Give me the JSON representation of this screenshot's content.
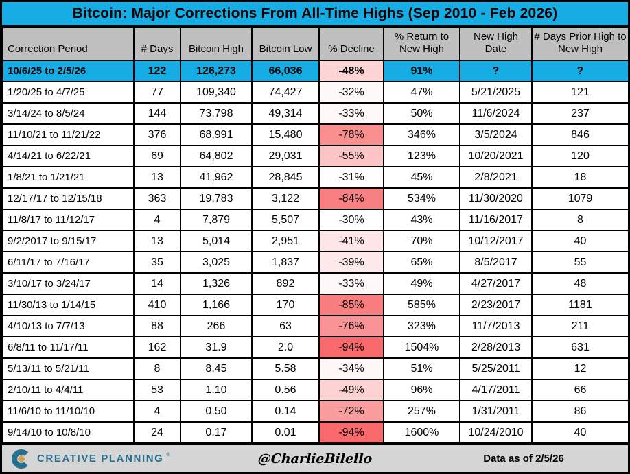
{
  "colors": {
    "accent_cyan": "#16ADE4",
    "header_gray": "#BFBFBF",
    "footer_gray": "#D6D6D6",
    "grid_black": "#000000",
    "decline_scale_min_color": "#FFFFFF",
    "decline_scale_max_color": "#F8696B",
    "logo_teal": "#26708F",
    "logo_gold": "#C8A356"
  },
  "chart_data": {
    "type": "table",
    "title": "Bitcoin: Major Corrections From All-Time Highs (Sep 2010 - Feb 2026)",
    "columns": [
      "Correction Period",
      "# Days",
      "Bitcoin High",
      "Bitcoin Low",
      "% Decline",
      "% Return to New High",
      "New High Date",
      "# Days Prior High to New High"
    ],
    "decline_color_rule": {
      "white_at": -30,
      "red_at": -94
    },
    "highlight_row_index": 0,
    "rows": [
      [
        "10/6/25 to 2/5/26",
        "122",
        "126,273",
        "66,036",
        "-48%",
        "91%",
        "?",
        "?"
      ],
      [
        "1/20/25 to 4/7/25",
        "77",
        "109,340",
        "74,427",
        "-32%",
        "47%",
        "5/21/2025",
        "121"
      ],
      [
        "3/14/24 to 8/5/24",
        "144",
        "73,798",
        "49,314",
        "-33%",
        "50%",
        "11/6/2024",
        "237"
      ],
      [
        "11/10/21 to 11/21/22",
        "376",
        "68,991",
        "15,480",
        "-78%",
        "346%",
        "3/5/2024",
        "846"
      ],
      [
        "4/14/21 to 6/22/21",
        "69",
        "64,802",
        "29,031",
        "-55%",
        "123%",
        "10/20/2021",
        "120"
      ],
      [
        "1/8/21 to 1/21/21",
        "13",
        "41,962",
        "28,845",
        "-31%",
        "45%",
        "2/8/2021",
        "18"
      ],
      [
        "12/17/17 to 12/15/18",
        "363",
        "19,783",
        "3,122",
        "-84%",
        "534%",
        "11/30/2020",
        "1079"
      ],
      [
        "11/8/17 to 11/12/17",
        "4",
        "7,879",
        "5,507",
        "-30%",
        "43%",
        "11/16/2017",
        "8"
      ],
      [
        "9/2/2017 to 9/15/17",
        "13",
        "5,014",
        "2,951",
        "-41%",
        "70%",
        "10/12/2017",
        "40"
      ],
      [
        "6/11/17 to 7/16/17",
        "35",
        "3,025",
        "1,837",
        "-39%",
        "65%",
        "8/5/2017",
        "55"
      ],
      [
        "3/10/17 to 3/24/17",
        "14",
        "1,326",
        "892",
        "-33%",
        "49%",
        "4/27/2017",
        "48"
      ],
      [
        "11/30/13 to 1/14/15",
        "410",
        "1,166",
        "170",
        "-85%",
        "585%",
        "2/23/2017",
        "1181"
      ],
      [
        "4/10/13 to 7/7/13",
        "88",
        "266",
        "63",
        "-76%",
        "323%",
        "11/7/2013",
        "211"
      ],
      [
        "6/8/11 to 11/17/11",
        "162",
        "31.9",
        "2.0",
        "-94%",
        "1504%",
        "2/28/2013",
        "631"
      ],
      [
        "5/13/11 to 5/21/11",
        "8",
        "8.45",
        "5.58",
        "-34%",
        "51%",
        "5/25/2011",
        "12"
      ],
      [
        "2/10/11 to 4/4/11",
        "53",
        "1.10",
        "0.56",
        "-49%",
        "96%",
        "4/17/2011",
        "66"
      ],
      [
        "11/6/10 to 11/10/10",
        "4",
        "0.50",
        "0.14",
        "-72%",
        "257%",
        "1/31/2011",
        "86"
      ],
      [
        "9/14/10 to 10/8/10",
        "24",
        "0.17",
        "0.01",
        "-94%",
        "1600%",
        "10/24/2010",
        "40"
      ]
    ]
  },
  "footer": {
    "logo_text": "CREATIVE PLANNING",
    "trademark": "®",
    "handle": "@CharlieBilello",
    "data_as_of": "Data as of 2/5/26"
  }
}
